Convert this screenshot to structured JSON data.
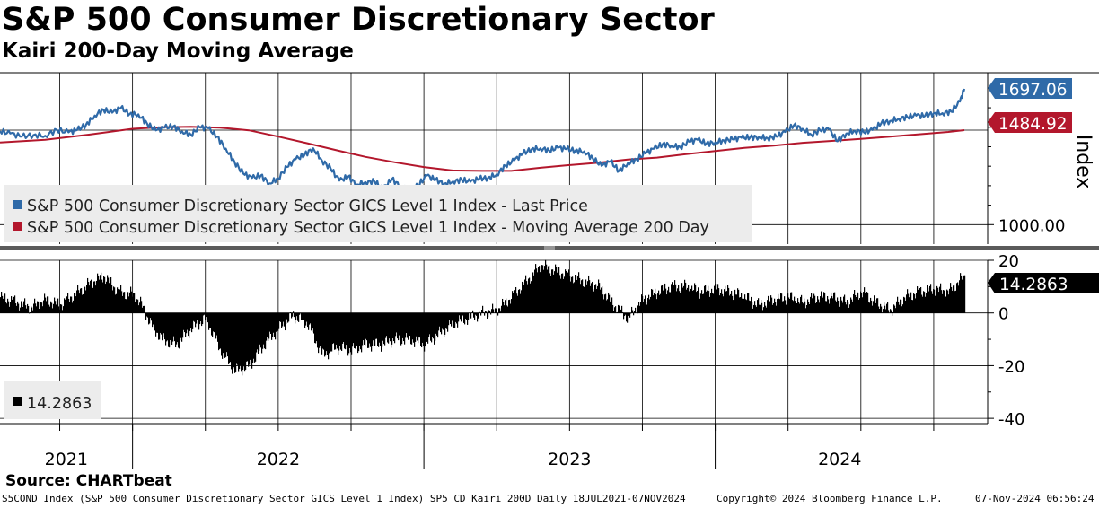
{
  "header": {
    "title": "S&P 500 Consumer Discretionary Sector",
    "subtitle": "Kairi 200-Day Moving Average"
  },
  "footer": {
    "source": "Source: CHARTbeat",
    "description": "S5COND Index (S&P 500 Consumer Discretionary Sector GICS Level 1 Index) SP5 CD Kairi 200D  Daily 18JUL2021-07NOV2024",
    "copyright": "Copyright© 2024 Bloomberg Finance L.P.",
    "timestamp": "07-Nov-2024 06:56:24"
  },
  "colors": {
    "price": "#2f6aa8",
    "ma": "#b3172c",
    "kairi": "#000000",
    "last_price_badge": "#2f6aa8",
    "ma_badge": "#b3172c"
  },
  "chart_data": [
    {
      "type": "line",
      "title": "S&P 500 Consumer Discretionary Sector",
      "ylabel": "Index",
      "ylim": [
        900,
        1780
      ],
      "y_ticks": [
        1000
      ],
      "y_tick_labels": [
        "1000.00"
      ],
      "x_tick_labels": [
        "2021",
        "2022",
        "2023",
        "2024"
      ],
      "x_range": [
        2021.545,
        2024.855
      ],
      "legend_position": "bottom-left",
      "series": [
        {
          "name": "S&P 500 Consumer Discretionary Sector GICS Level 1 Index - Last Price",
          "last_label": "1697.06",
          "x": [
            2021.545,
            2021.58,
            2021.62,
            2021.66,
            2021.7,
            2021.74,
            2021.78,
            2021.81,
            2021.84,
            2021.87,
            2021.9,
            2021.93,
            2021.96,
            2021.99,
            2022.02,
            2022.05,
            2022.08,
            2022.11,
            2022.14,
            2022.17,
            2022.2,
            2022.23,
            2022.26,
            2022.29,
            2022.32,
            2022.35,
            2022.38,
            2022.41,
            2022.44,
            2022.47,
            2022.5,
            2022.53,
            2022.56,
            2022.59,
            2022.62,
            2022.65,
            2022.68,
            2022.71,
            2022.74,
            2022.77,
            2022.8,
            2022.83,
            2022.86,
            2022.89,
            2022.92,
            2022.95,
            2022.98,
            2023.01,
            2023.04,
            2023.07,
            2023.1,
            2023.13,
            2023.16,
            2023.19,
            2023.22,
            2023.25,
            2023.28,
            2023.31,
            2023.34,
            2023.37,
            2023.4,
            2023.43,
            2023.46,
            2023.49,
            2023.52,
            2023.55,
            2023.58,
            2023.61,
            2023.64,
            2023.67,
            2023.7,
            2023.73,
            2023.76,
            2023.79,
            2023.82,
            2023.85,
            2023.88,
            2023.91,
            2023.94,
            2023.97,
            2024.0,
            2024.03,
            2024.06,
            2024.09,
            2024.12,
            2024.15,
            2024.18,
            2024.21,
            2024.24,
            2024.27,
            2024.3,
            2024.33,
            2024.36,
            2024.39,
            2024.42,
            2024.45,
            2024.48,
            2024.51,
            2024.54,
            2024.57,
            2024.6,
            2024.63,
            2024.66,
            2024.69,
            2024.72,
            2024.75,
            2024.78,
            2024.81,
            2024.84,
            2024.855
          ],
          "values": [
            1480,
            1468,
            1452,
            1460,
            1456,
            1486,
            1474,
            1486,
            1512,
            1560,
            1590,
            1575,
            1600,
            1568,
            1566,
            1518,
            1484,
            1498,
            1505,
            1478,
            1462,
            1500,
            1495,
            1452,
            1390,
            1322,
            1262,
            1240,
            1252,
            1212,
            1238,
            1296,
            1336,
            1358,
            1392,
            1330,
            1288,
            1226,
            1246,
            1206,
            1218,
            1222,
            1184,
            1234,
            1196,
            1174,
            1202,
            1252,
            1230,
            1210,
            1222,
            1230,
            1220,
            1236,
            1240,
            1258,
            1302,
            1330,
            1365,
            1388,
            1392,
            1380,
            1395,
            1388,
            1380,
            1376,
            1340,
            1302,
            1325,
            1276,
            1315,
            1335,
            1366,
            1390,
            1414,
            1406,
            1398,
            1426,
            1436,
            1416,
            1422,
            1432,
            1438,
            1446,
            1448,
            1450,
            1444,
            1452,
            1476,
            1510,
            1492,
            1462,
            1484,
            1490,
            1428,
            1468,
            1482,
            1474,
            1486,
            1520,
            1532,
            1544,
            1552,
            1560,
            1558,
            1572,
            1572,
            1580,
            1632,
            1697
          ]
        },
        {
          "name": "S&P 500 Consumer Discretionary Sector GICS Level 1 Index - Moving Average 200 Day",
          "last_label": "1484.92",
          "x": [
            2021.545,
            2021.7,
            2021.85,
            2022.0,
            2022.1,
            2022.2,
            2022.3,
            2022.4,
            2022.5,
            2022.6,
            2022.7,
            2022.8,
            2022.9,
            2023.0,
            2023.1,
            2023.2,
            2023.3,
            2023.4,
            2023.5,
            2023.6,
            2023.7,
            2023.8,
            2023.9,
            2024.0,
            2024.1,
            2024.2,
            2024.3,
            2024.4,
            2024.5,
            2024.6,
            2024.7,
            2024.8,
            2024.855
          ],
          "values": [
            1422,
            1436,
            1462,
            1492,
            1500,
            1502,
            1498,
            1484,
            1452,
            1418,
            1382,
            1348,
            1320,
            1296,
            1278,
            1276,
            1276,
            1292,
            1306,
            1318,
            1334,
            1344,
            1362,
            1378,
            1394,
            1406,
            1420,
            1430,
            1440,
            1452,
            1464,
            1476,
            1485
          ]
        }
      ]
    },
    {
      "type": "bar",
      "title": "Kairi 200-Day Moving Average",
      "ylim": [
        -42,
        20
      ],
      "y_ticks": [
        20,
        0,
        -20,
        -40
      ],
      "y_tick_labels": [
        "20",
        "0",
        "-20",
        "-40"
      ],
      "x_range": [
        2021.545,
        2024.855
      ],
      "legend": [
        "14.2863"
      ],
      "last_label": "14.2863",
      "x": [
        2021.545,
        2021.6,
        2021.65,
        2021.7,
        2021.75,
        2021.8,
        2021.85,
        2021.9,
        2021.95,
        2022.0,
        2022.03,
        2022.06,
        2022.1,
        2022.15,
        2022.2,
        2022.25,
        2022.3,
        2022.35,
        2022.4,
        2022.45,
        2022.5,
        2022.55,
        2022.6,
        2022.65,
        2022.7,
        2022.75,
        2022.8,
        2022.85,
        2022.9,
        2022.95,
        2023.0,
        2023.05,
        2023.1,
        2023.15,
        2023.2,
        2023.25,
        2023.3,
        2023.35,
        2023.4,
        2023.45,
        2023.5,
        2023.55,
        2023.6,
        2023.65,
        2023.7,
        2023.75,
        2023.8,
        2023.85,
        2023.9,
        2023.95,
        2024.0,
        2024.05,
        2024.1,
        2024.15,
        2024.2,
        2024.25,
        2024.3,
        2024.35,
        2024.4,
        2024.45,
        2024.5,
        2024.55,
        2024.6,
        2024.65,
        2024.7,
        2024.75,
        2024.8,
        2024.855
      ],
      "values": [
        6,
        4,
        2,
        5,
        3,
        7,
        11,
        14,
        8,
        7,
        3,
        -4,
        -10,
        -12,
        -6,
        -2,
        -14,
        -22,
        -20,
        -12,
        -6,
        -1,
        -4,
        -16,
        -13,
        -14,
        -12,
        -12,
        -10,
        -10,
        -12,
        -8,
        -4,
        -2,
        0,
        1,
        6,
        12,
        18,
        16,
        14,
        12,
        10,
        3,
        -2,
        5,
        8,
        10,
        10,
        8,
        9,
        8,
        6,
        3,
        5,
        6,
        4,
        6,
        6,
        4,
        8,
        4,
        1,
        6,
        8,
        9,
        8,
        14.2863
      ]
    }
  ]
}
